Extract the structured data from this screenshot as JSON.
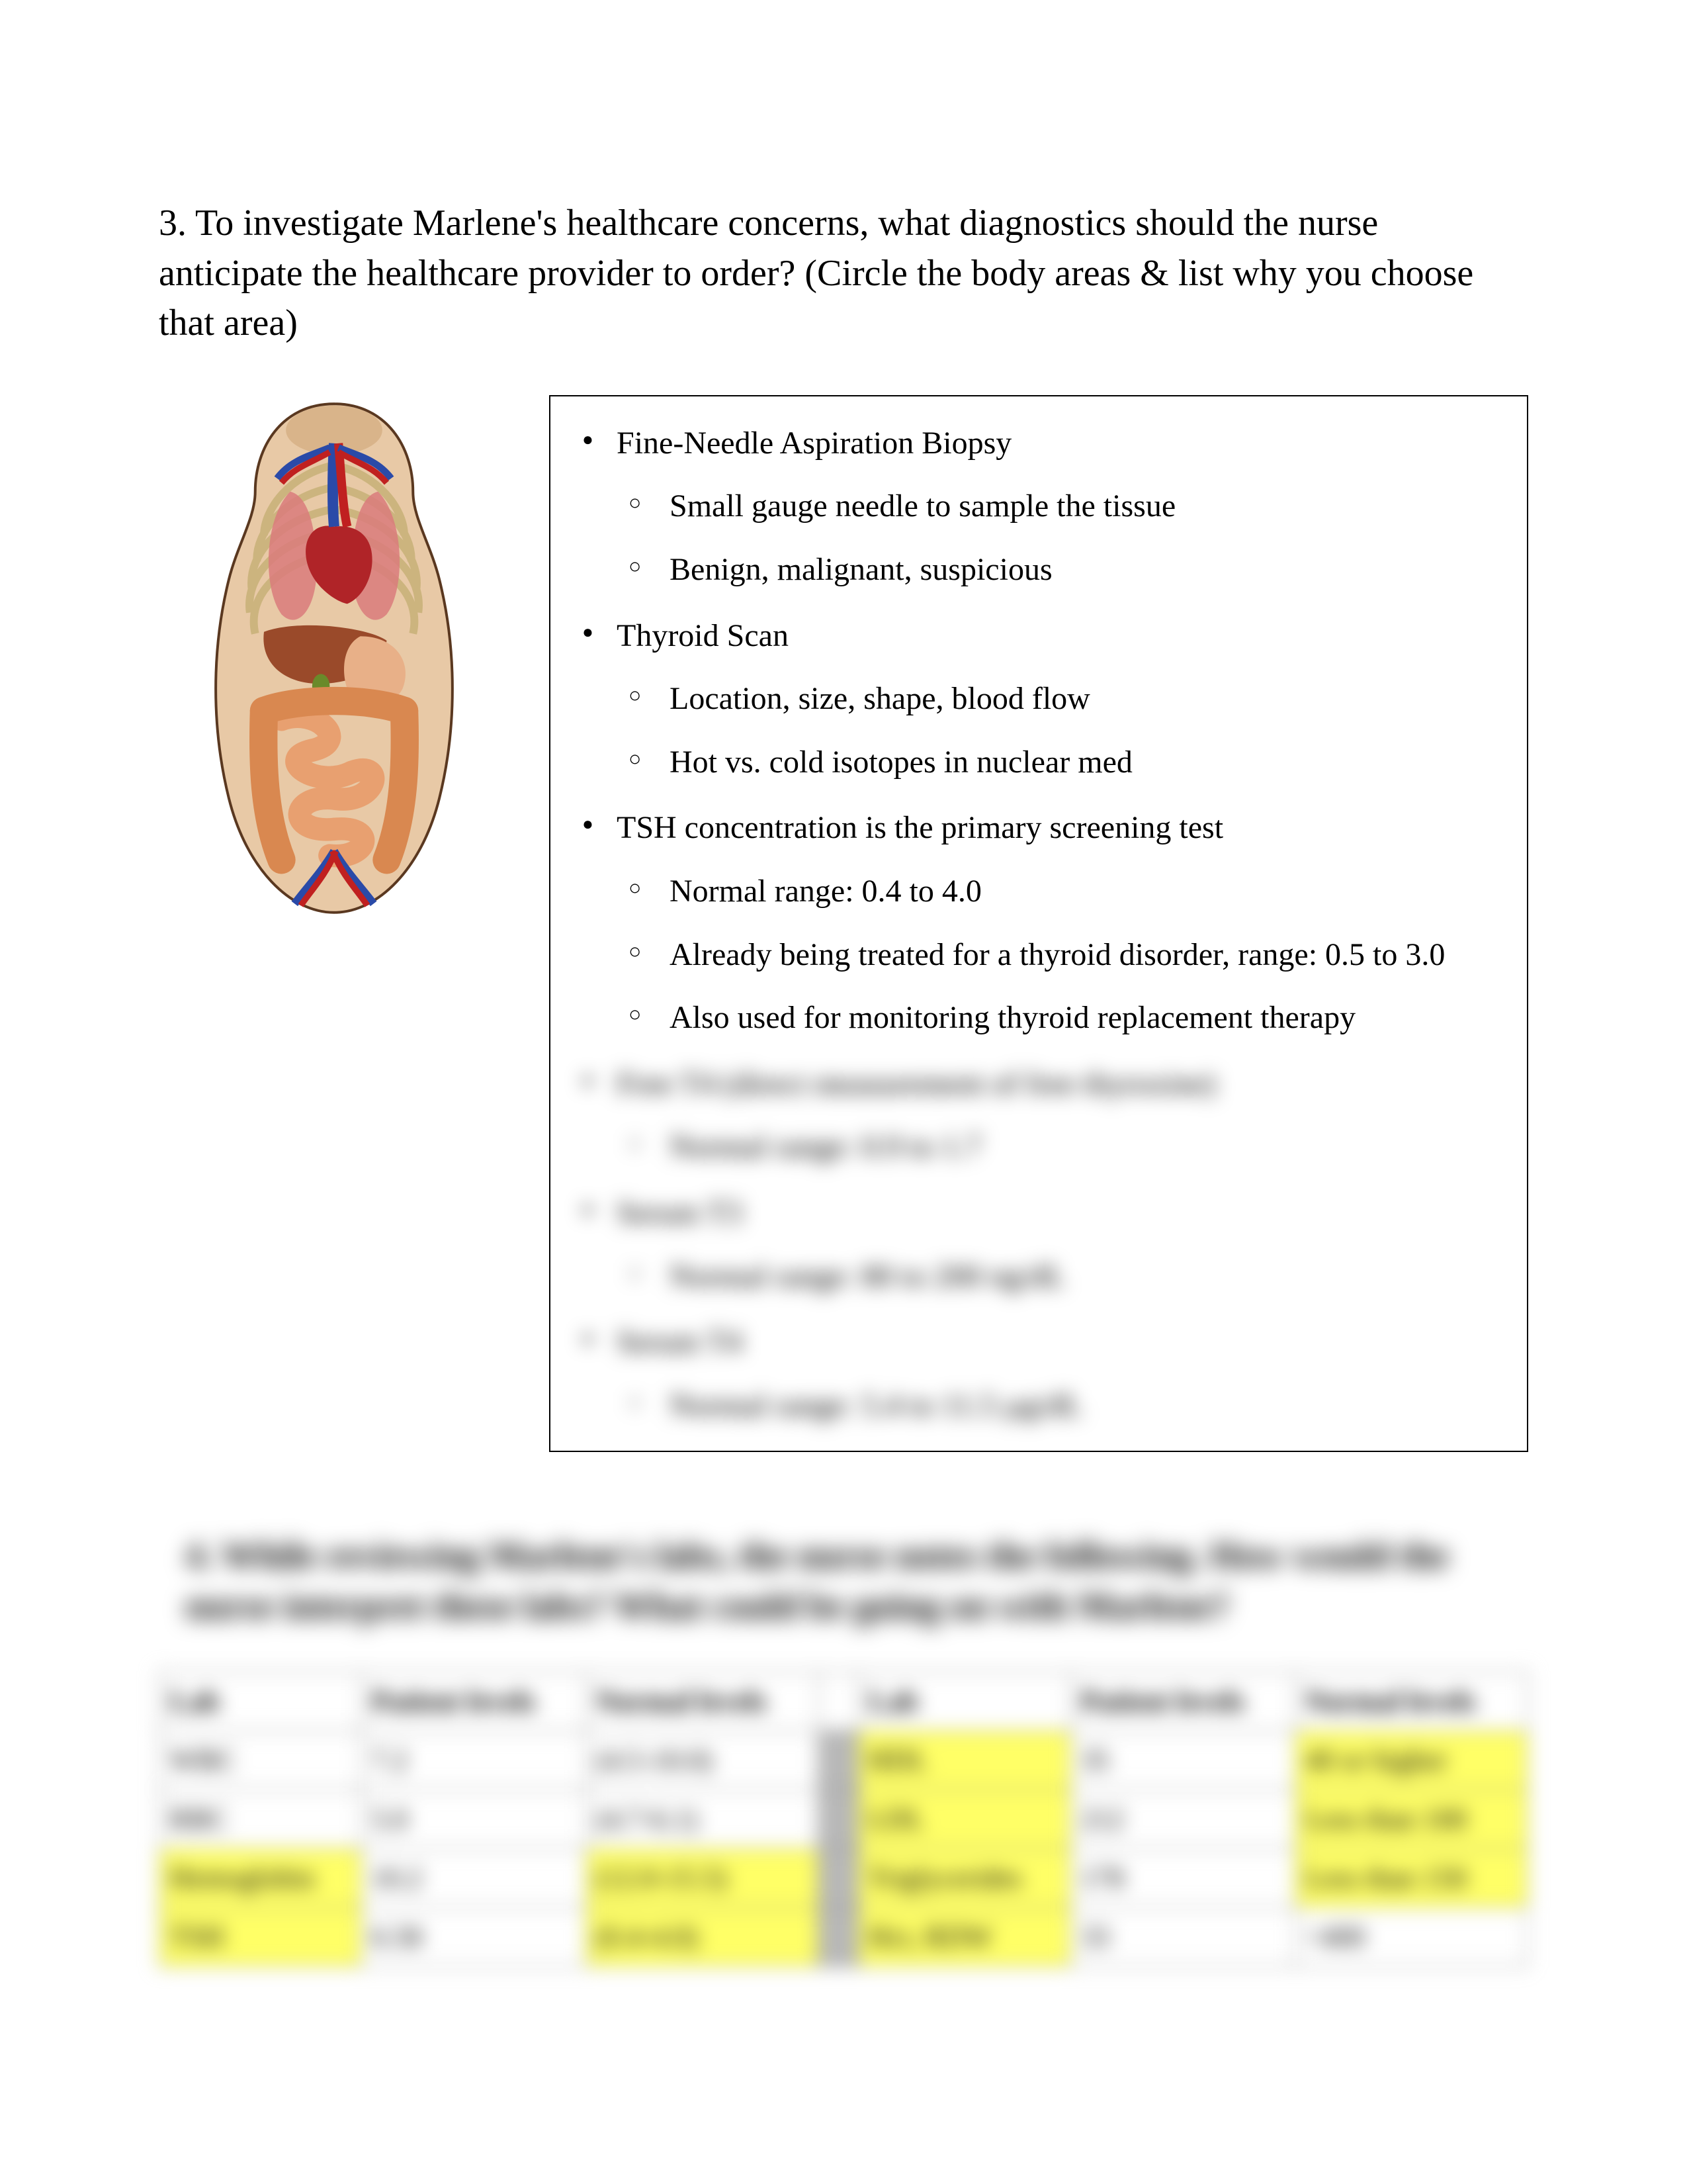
{
  "question3": {
    "number": "3.",
    "text": "To investigate Marlene's healthcare concerns, what diagnostics should the nurse anticipate the healthcare provider to order?  (Circle the body areas & list why you choose that area)"
  },
  "anatomy": {
    "caption": "",
    "colors": {
      "skin": "#e8c9a6",
      "rib": "#f0e2c0",
      "heart": "#b02428",
      "lung": "#d97b7b",
      "liver": "#9a4a2a",
      "intestine": "#e8a070",
      "vein": "#2a4aa8",
      "artery": "#c02020",
      "outline": "#5a3820"
    }
  },
  "answers": {
    "items": [
      {
        "label": "Fine-Needle Aspiration Biopsy",
        "subs": [
          "Small gauge needle to sample the tissue",
          "Benign, malignant, suspicious"
        ]
      },
      {
        "label": "Thyroid Scan",
        "subs": [
          "Location, size, shape, blood flow",
          "Hot vs. cold isotopes in nuclear med"
        ]
      },
      {
        "label": "TSH concentration is the primary screening test",
        "subs": [
          "Normal range: 0.4 to 4.0",
          "Already being treated for a thyroid disorder, range: 0.5 to 3.0",
          "Also used for monitoring thyroid replacement therapy"
        ]
      }
    ],
    "blurred": [
      {
        "label": "Free T4 (direct measurement of free thyroxine)",
        "subs": [
          "Normal range: 0.9 to 1.7"
        ]
      },
      {
        "label": "Serum T3",
        "subs": [
          "Normal range: 80 to 200 ng/dL"
        ]
      },
      {
        "label": "Serum T4",
        "subs": [
          "Normal range: 5.4 to 11.5 µg/dL"
        ]
      }
    ]
  },
  "question4": {
    "text": "4. While reviewing Marlene's labs, the nurse notes the following.  How would the nurse interpret these labs?  What could be going on with Marlene?"
  },
  "labTable": {
    "headers_left": [
      "Lab",
      "Patient levels",
      "Normal levels"
    ],
    "headers_right": [
      "Lab",
      "Patient levels",
      "Normal levels"
    ],
    "rows": [
      {
        "left": {
          "lab": "WBC",
          "pt": "7.2",
          "nl": "(4.5-10.0)",
          "hl": [
            false,
            false,
            false
          ]
        },
        "right": {
          "lab": "HDL",
          "pt": "35",
          "nl": "40 or higher",
          "hl": [
            true,
            false,
            true
          ]
        }
      },
      {
        "left": {
          "lab": "RBC",
          "pt": "5.0",
          "nl": "(4.7-6.1)",
          "hl": [
            false,
            false,
            false
          ]
        },
        "right": {
          "lab": "LDL",
          "pt": "212",
          "nl": "Less than 100",
          "hl": [
            true,
            false,
            true
          ]
        }
      },
      {
        "left": {
          "lab": "Hemoglobin",
          "pt": "10.2",
          "nl": "(12.0-15.5)",
          "hl": [
            true,
            false,
            true
          ]
        },
        "right": {
          "lab": "Triglycerides",
          "pt": "178",
          "nl": "Less than 150",
          "hl": [
            true,
            false,
            true
          ]
        }
      },
      {
        "left": {
          "lab": "TSH",
          "pt": "6.58",
          "nl": "(0.4-4.0)",
          "hl": [
            true,
            false,
            true
          ]
        },
        "right": {
          "lab": "Hct, RDW",
          "pt": "33",
          "nl": "<400",
          "hl": [
            true,
            false,
            false
          ]
        }
      }
    ]
  }
}
